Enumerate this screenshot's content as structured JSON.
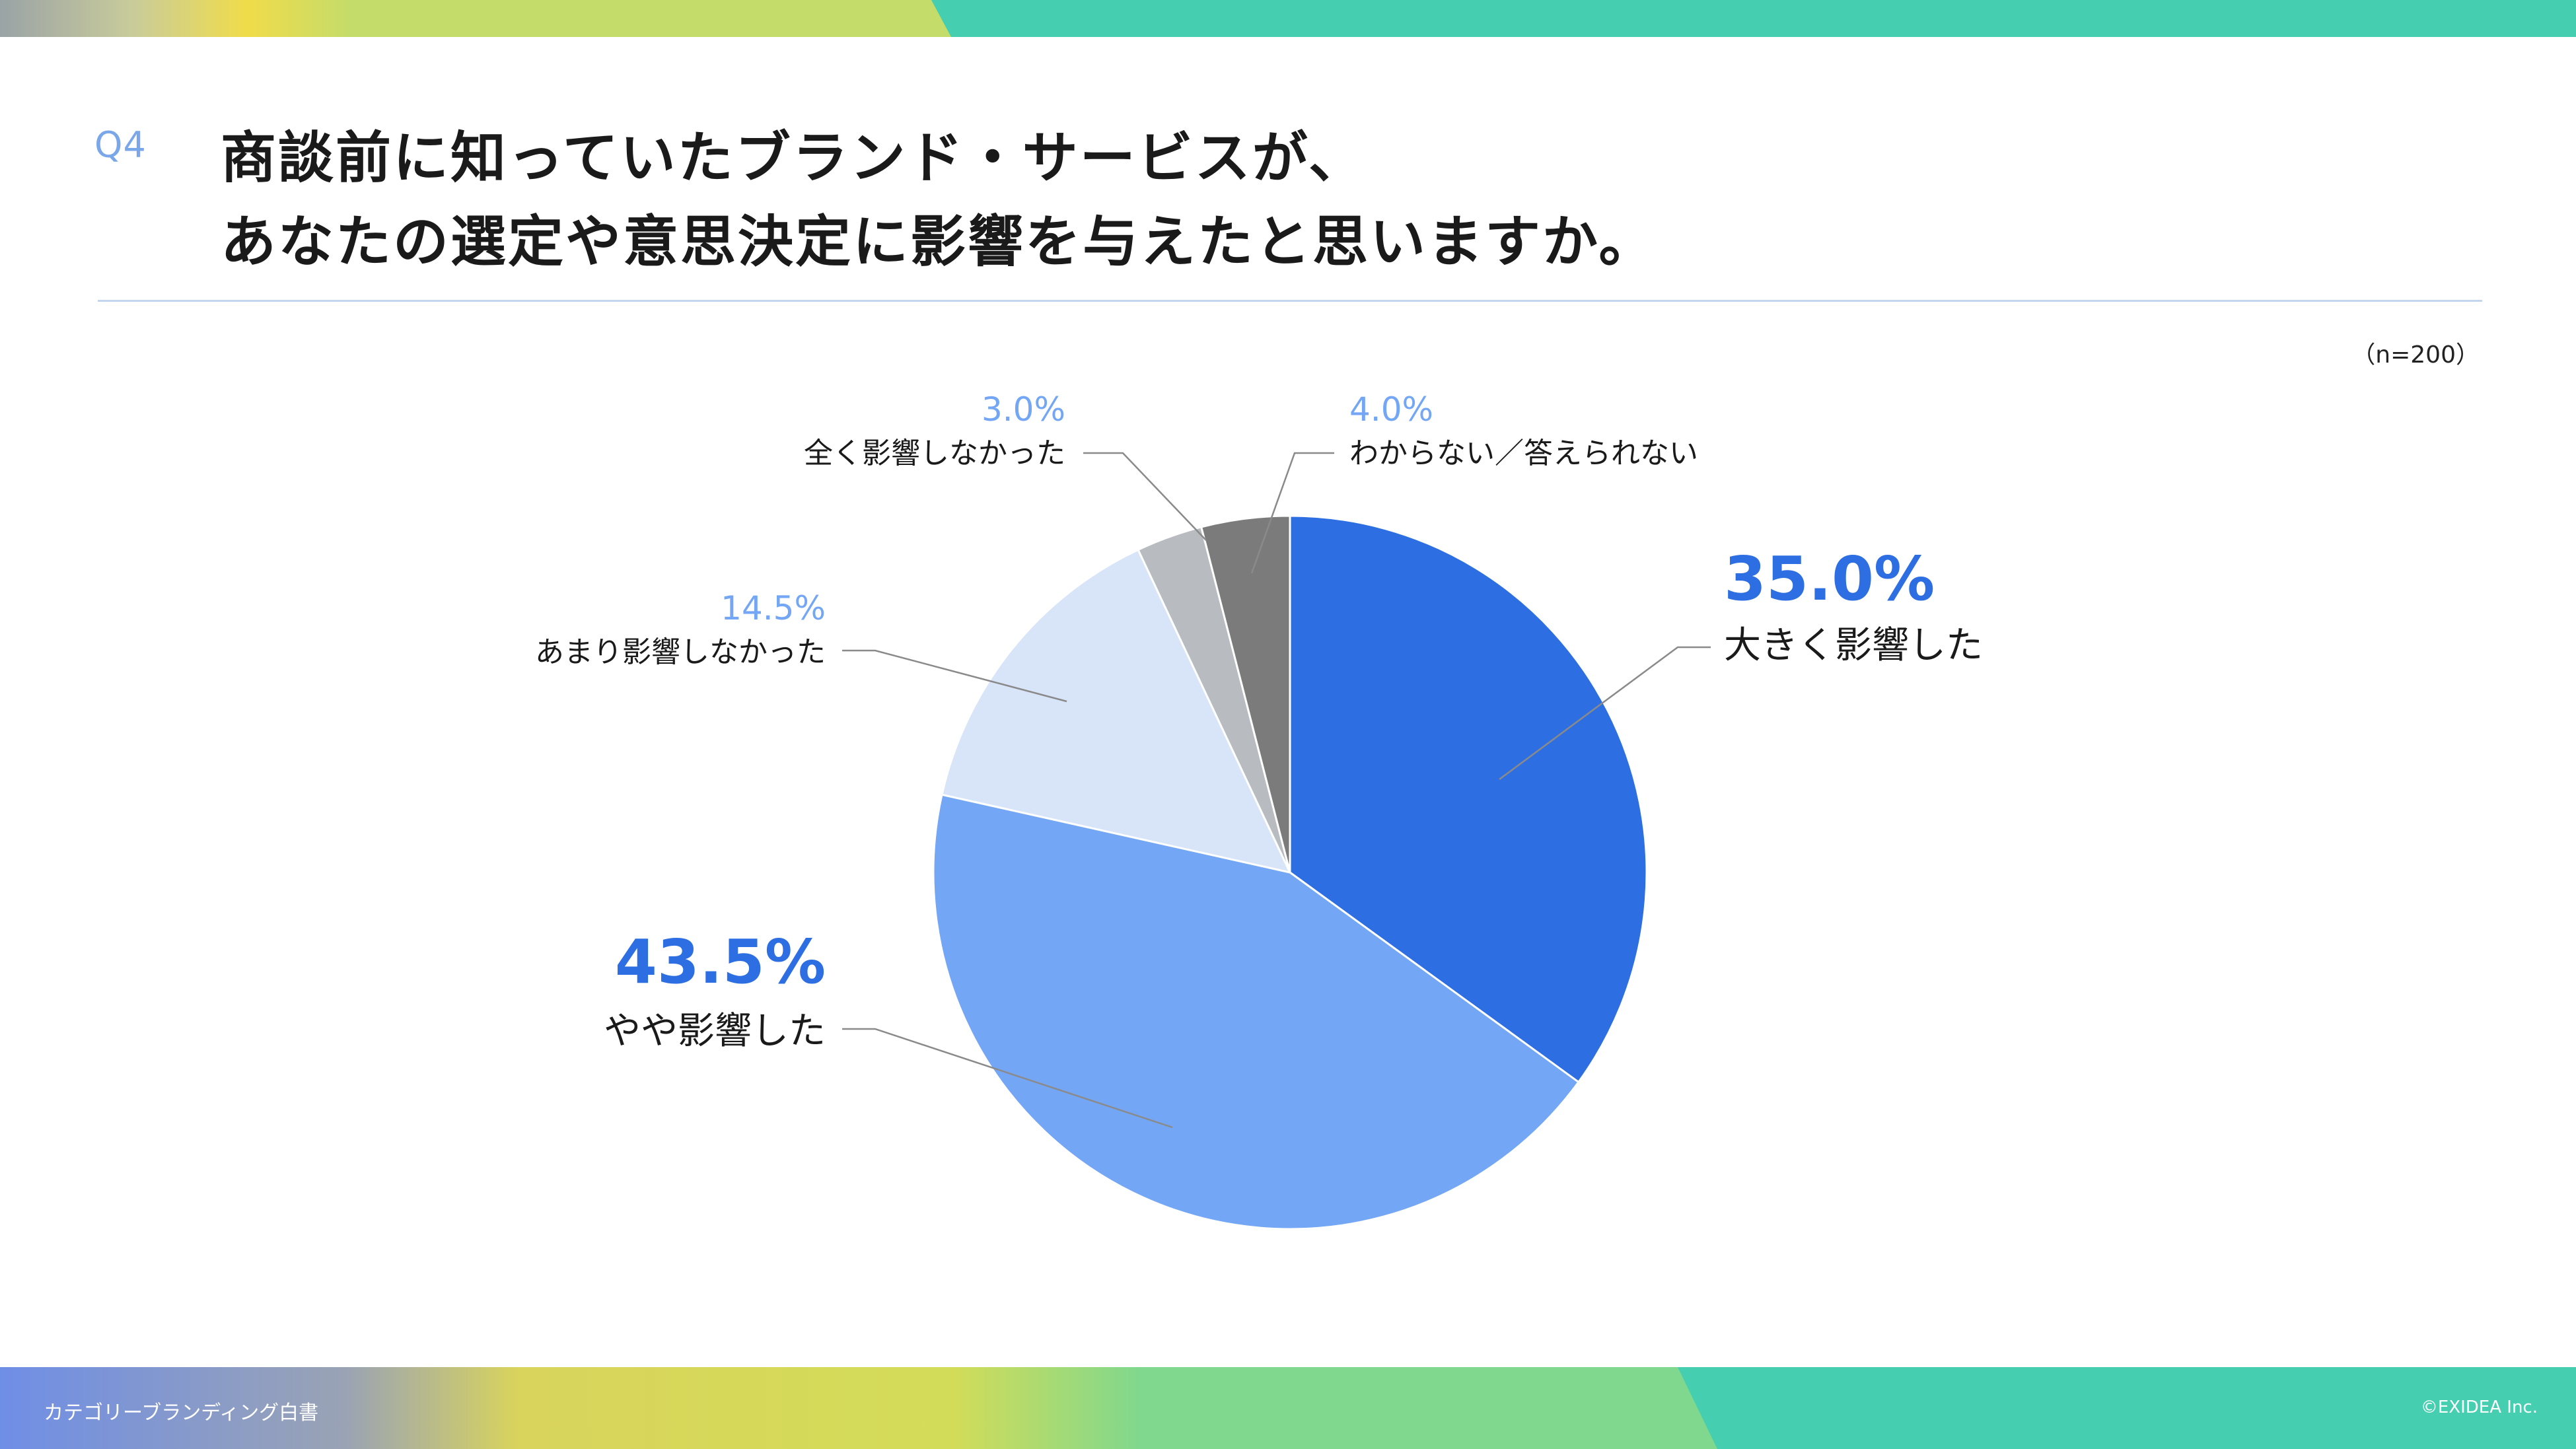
{
  "question": {
    "number": "Q4",
    "title_line1": "商談前に知っていたブランド・サービスが、",
    "title_line2": "あなたの選定や意思決定に影響を与えたと思いますか。"
  },
  "sample_note": "（n=200）",
  "footer": {
    "left": "カテゴリーブランディング白書",
    "right": "©EXIDEA Inc."
  },
  "colors": {
    "accent_blue": "#2d6fe2",
    "light_blue": "#74a6f6",
    "pale_blue": "#d8e5f9",
    "light_gray": "#b8bcc1",
    "dark_gray": "#7b7b7b",
    "label_light": "#74a6f6",
    "teal": "#45ceb0"
  },
  "chart_data": {
    "type": "pie",
    "start": "12 o'clock",
    "direction": "clockwise",
    "slices": [
      {
        "label": "大きく影響した",
        "value": 35.0,
        "display": "35.0%",
        "color": "#2d6fe2"
      },
      {
        "label": "やや影響した",
        "value": 43.5,
        "display": "43.5%",
        "color": "#74a6f6"
      },
      {
        "label": "あまり影響しなかった",
        "value": 14.5,
        "display": "14.5%",
        "color": "#d8e5f9"
      },
      {
        "label": "全く影響しなかった",
        "value": 3.0,
        "display": "3.0%",
        "color": "#b8bcc1"
      },
      {
        "label": "わからない／答えられない",
        "value": 4.0,
        "display": "4.0%",
        "color": "#7b7b7b"
      }
    ]
  }
}
